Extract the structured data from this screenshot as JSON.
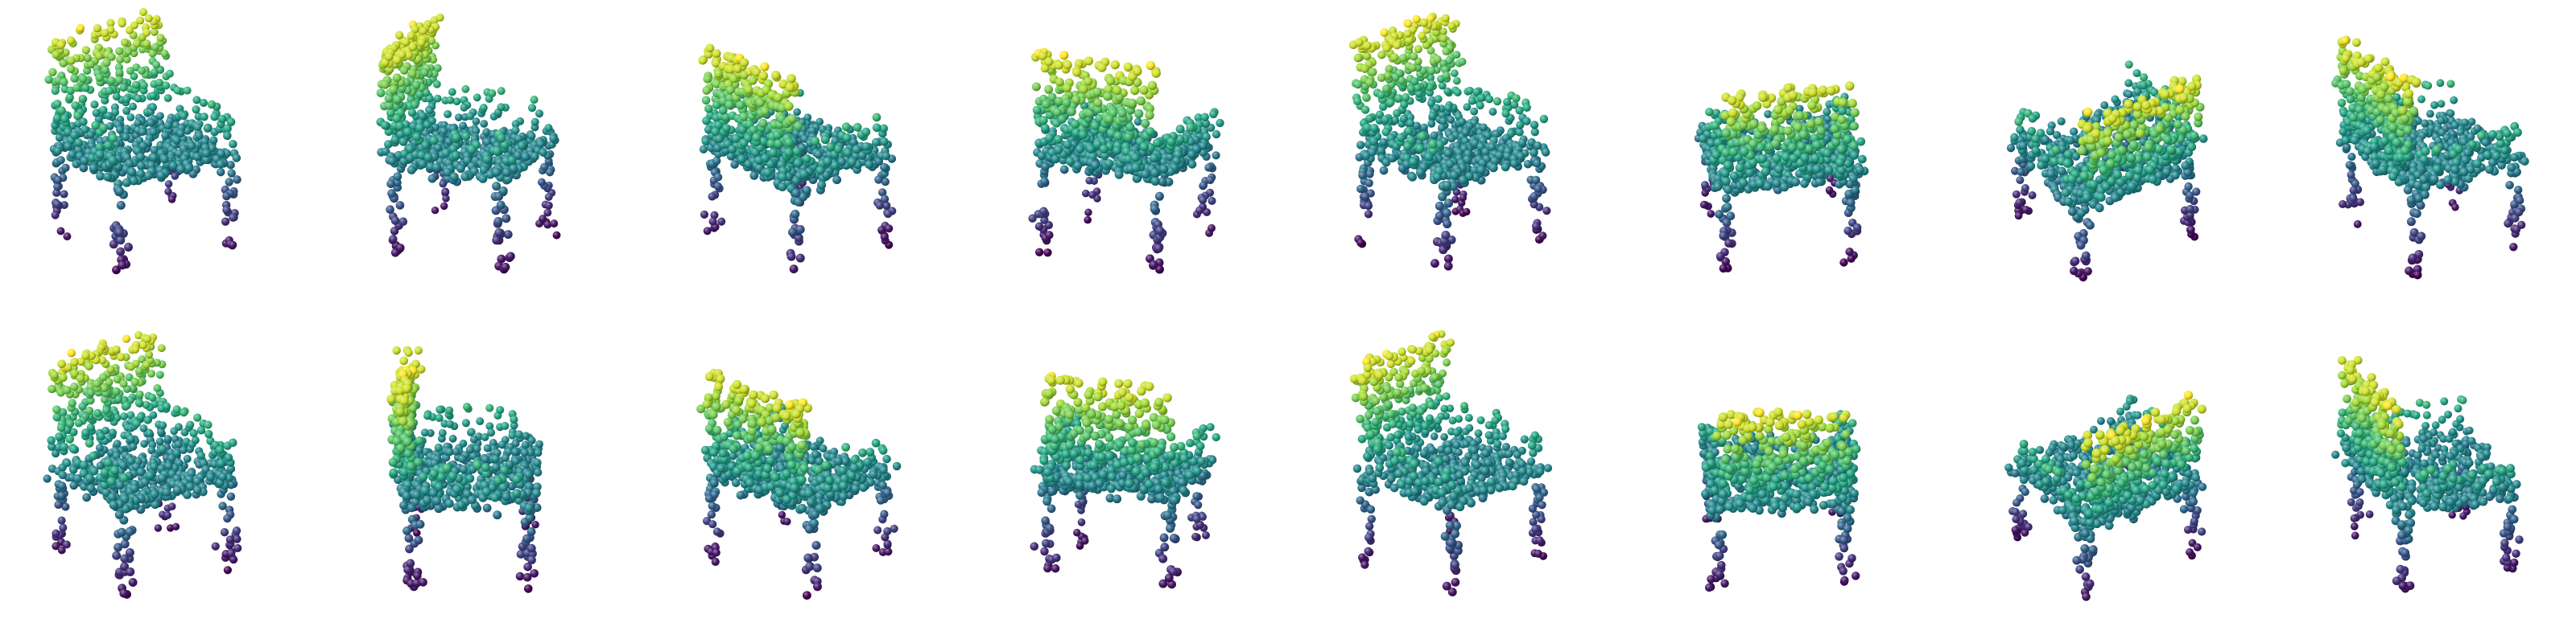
{
  "figure": {
    "background": "#ffffff",
    "layout": {
      "rows": 2,
      "columns": 8
    },
    "colormap": "viridis",
    "colors": {
      "viridis_low": "#440154",
      "viridis_mid": "#21918c",
      "viridis_high": "#fde725"
    },
    "marker": "sphere",
    "row_labels": [],
    "column_labels": []
  },
  "panels": [
    {
      "name": "panel-r1-c1",
      "row": 1,
      "col": 1,
      "object": "chair"
    },
    {
      "name": "panel-r1-c2",
      "row": 1,
      "col": 2,
      "object": "chair"
    },
    {
      "name": "panel-r1-c3",
      "row": 1,
      "col": 3,
      "object": "chair"
    },
    {
      "name": "panel-r1-c4",
      "row": 1,
      "col": 4,
      "object": "chair"
    },
    {
      "name": "panel-r1-c5",
      "row": 1,
      "col": 5,
      "object": "chair"
    },
    {
      "name": "panel-r1-c6",
      "row": 1,
      "col": 6,
      "object": "chair"
    },
    {
      "name": "panel-r1-c7",
      "row": 1,
      "col": 7,
      "object": "chair"
    },
    {
      "name": "panel-r1-c8",
      "row": 1,
      "col": 8,
      "object": "chair"
    },
    {
      "name": "panel-r2-c1",
      "row": 2,
      "col": 1,
      "object": "chair"
    },
    {
      "name": "panel-r2-c2",
      "row": 2,
      "col": 2,
      "object": "chair"
    },
    {
      "name": "panel-r2-c3",
      "row": 2,
      "col": 3,
      "object": "chair"
    },
    {
      "name": "panel-r2-c4",
      "row": 2,
      "col": 4,
      "object": "chair"
    },
    {
      "name": "panel-r2-c5",
      "row": 2,
      "col": 5,
      "object": "chair"
    },
    {
      "name": "panel-r2-c6",
      "row": 2,
      "col": 6,
      "object": "chair"
    },
    {
      "name": "panel-r2-c7",
      "row": 2,
      "col": 7,
      "object": "chair"
    },
    {
      "name": "panel-r2-c8",
      "row": 2,
      "col": 8,
      "object": "chair"
    }
  ]
}
